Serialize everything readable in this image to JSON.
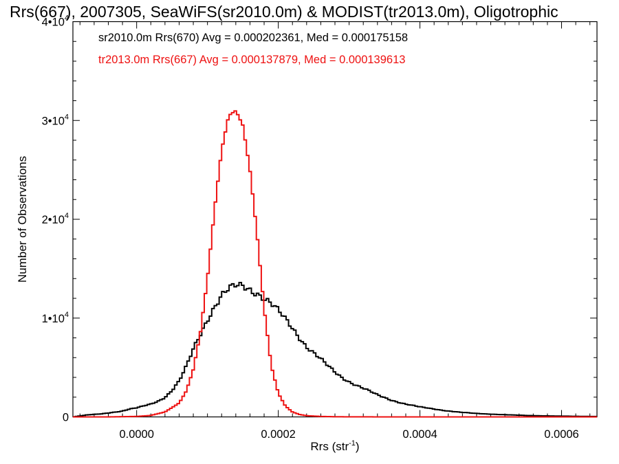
{
  "chart_data": {
    "type": "histogram-step",
    "title": "Rrs(667), 2007305, SeaWiFS(sr2010.0m) & MODIST(tr2013.0m), Oligotrophic",
    "xlabel": "Rrs (str",
    "xlabel_sup": "-1",
    "xlabel_suffix": ")",
    "ylabel": "Number of Observations",
    "xlim": [
      -9e-05,
      0.00065
    ],
    "ylim": [
      0,
      40000
    ],
    "x_ticks": [
      {
        "value": 0.0,
        "label": "0.0000"
      },
      {
        "value": 0.0002,
        "label": "0.0002"
      },
      {
        "value": 0.0004,
        "label": "0.0004"
      },
      {
        "value": 0.0006,
        "label": "0.0006"
      }
    ],
    "y_ticks": [
      {
        "value": 0,
        "mant": "0",
        "sup": ""
      },
      {
        "value": 10000,
        "mant": "1•10",
        "sup": "4"
      },
      {
        "value": 20000,
        "mant": "2•10",
        "sup": "4"
      },
      {
        "value": 30000,
        "mant": "3•10",
        "sup": "4"
      },
      {
        "value": 40000,
        "mant": "4•10",
        "sup": "4"
      }
    ],
    "legend": [
      {
        "text": "sr2010.0m Rrs(670) Avg = 0.000202361, Med = 0.000175158",
        "color": "#000000"
      },
      {
        "text": "tr2013.0m Rrs(667) Avg = 0.000137879, Med = 0.000139613",
        "color": "#ee1111"
      }
    ],
    "legend_position": "top-left",
    "series": [
      {
        "color": "#000000",
        "x": [
          -9e-05,
          -8e-05,
          -7e-05,
          -6e-05,
          -5e-05,
          -4e-05,
          -3e-05,
          -2e-05,
          -1e-05,
          0.0,
          1e-05,
          2e-05,
          3e-05,
          4e-05,
          5e-05,
          6e-05,
          7e-05,
          8e-05,
          9e-05,
          0.0001,
          0.00011,
          0.00012,
          0.00013,
          0.00014,
          0.00015,
          0.00016,
          0.00017,
          0.00018,
          0.00019,
          0.0002,
          0.00021,
          0.00022,
          0.00023,
          0.00024,
          0.00025,
          0.00026,
          0.00027,
          0.00028,
          0.00029,
          0.0003,
          0.00032,
          0.00034,
          0.00036,
          0.00038,
          0.0004,
          0.00042,
          0.00044,
          0.00046,
          0.00048,
          0.0005,
          0.00052,
          0.00054,
          0.00056,
          0.00058,
          0.0006,
          0.00062,
          0.00065
        ],
        "y": [
          0,
          100,
          200,
          250,
          300,
          400,
          500,
          600,
          800,
          900,
          1100,
          1300,
          1600,
          2000,
          2700,
          3600,
          5000,
          6800,
          8400,
          10000,
          11300,
          12300,
          12800,
          13100,
          13200,
          13000,
          12700,
          12100,
          11400,
          10600,
          9800,
          9000,
          8100,
          7200,
          6500,
          5800,
          5100,
          4500,
          4000,
          3600,
          2900,
          2200,
          1700,
          1300,
          1000,
          800,
          600,
          450,
          350,
          280,
          220,
          170,
          130,
          100,
          80,
          60,
          40
        ]
      },
      {
        "color": "#ee1111",
        "x": [
          -9e-05,
          -4e-05,
          0.0,
          2e-05,
          4e-05,
          6e-05,
          7e-05,
          8e-05,
          9e-05,
          0.0001,
          0.00011,
          0.00012,
          0.00013,
          0.00014,
          0.00015,
          0.00016,
          0.00017,
          0.00018,
          0.00019,
          0.0002,
          0.00021,
          0.00022,
          0.00023,
          0.00024,
          0.00026,
          0.00028,
          0.0003,
          0.00035,
          0.0004,
          0.00065
        ],
        "y": [
          0,
          0,
          50,
          150,
          500,
          1400,
          2600,
          4800,
          8500,
          14000,
          21000,
          27000,
          30500,
          31000,
          29500,
          25000,
          18500,
          11000,
          5200,
          2400,
          1100,
          500,
          250,
          120,
          50,
          20,
          8,
          3,
          0,
          0
        ]
      }
    ]
  }
}
